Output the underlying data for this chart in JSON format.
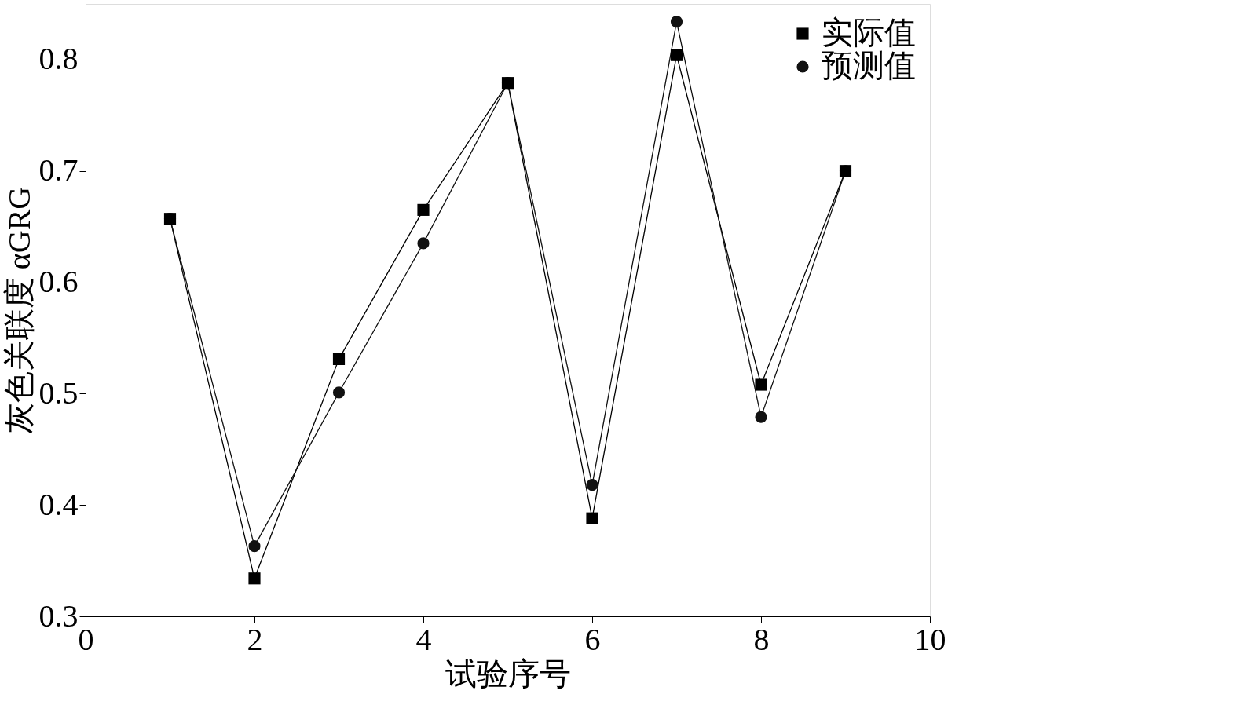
{
  "chart_data": {
    "type": "line",
    "xlabel": "试验序号",
    "ylabel": "灰色关联度 αGRG",
    "x": [
      1,
      2,
      3,
      4,
      5,
      6,
      7,
      8,
      9
    ],
    "series": [
      {
        "name": "实际值",
        "color": "#000000",
        "marker": "square",
        "values": [
          0.657,
          0.334,
          0.531,
          0.665,
          0.779,
          0.388,
          0.804,
          0.508,
          0.7
        ]
      },
      {
        "name": "预测值",
        "color": "#111111",
        "marker": "circle",
        "values": [
          0.657,
          0.363,
          0.501,
          0.635,
          0.779,
          0.418,
          0.834,
          0.479,
          0.7
        ]
      }
    ],
    "xlim": [
      0,
      10
    ],
    "xticks": [
      0,
      2,
      4,
      6,
      8,
      10
    ],
    "ylim": [
      0.3,
      0.85
    ],
    "yticks": [
      0.3,
      0.4,
      0.5,
      0.6,
      0.7,
      0.8
    ],
    "grid": false,
    "legend": "top right",
    "line_style": "solid"
  }
}
